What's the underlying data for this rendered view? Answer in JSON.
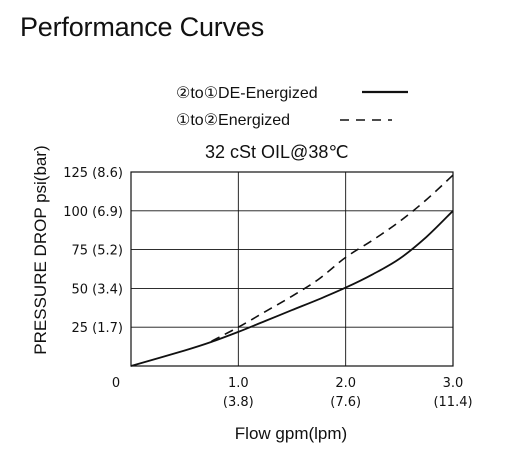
{
  "title": "Performance Curves",
  "chart_data": {
    "type": "line",
    "condition": "32 cSt OIL@38℃",
    "xlabel": "Flow gpm(lpm)",
    "ylabel": "PRESSURE DROP psi(bar)",
    "xlim": [
      0,
      3.0
    ],
    "ylim": [
      0,
      125
    ],
    "x_ticks": [
      {
        "value": 0,
        "label": "0",
        "sublabel": ""
      },
      {
        "value": 1.0,
        "label": "1.0",
        "sublabel": "(3.8)"
      },
      {
        "value": 2.0,
        "label": "2.0",
        "sublabel": "(7.6)"
      },
      {
        "value": 3.0,
        "label": "3.0",
        "sublabel": "(11.4)"
      }
    ],
    "y_ticks": [
      {
        "value": 25,
        "label": "25 (1.7)"
      },
      {
        "value": 50,
        "label": "50 (3.4)"
      },
      {
        "value": 75,
        "label": "75 (5.2)"
      },
      {
        "value": 100,
        "label": "100 (6.9)"
      },
      {
        "value": 125,
        "label": "125 (8.6)"
      }
    ],
    "grid": true,
    "legend_position": "top",
    "series": [
      {
        "name": "②to①DE-Energized",
        "style": "solid",
        "color": "#111111",
        "x": [
          0,
          0.5,
          0.75,
          1.0,
          1.25,
          1.5,
          1.75,
          2.0,
          2.25,
          2.5,
          2.75,
          3.0
        ],
        "y": [
          0,
          10,
          15.5,
          22,
          29,
          36,
          43,
          50.5,
          59,
          69,
          83,
          100
        ]
      },
      {
        "name": "①to②Energized",
        "style": "dashed",
        "color": "#111111",
        "x": [
          0.75,
          1.0,
          1.25,
          1.5,
          1.75,
          2.0,
          2.25,
          2.5,
          2.75,
          3.0
        ],
        "y": [
          16,
          25,
          35,
          45,
          56,
          70,
          81,
          93,
          107,
          123
        ]
      }
    ]
  }
}
